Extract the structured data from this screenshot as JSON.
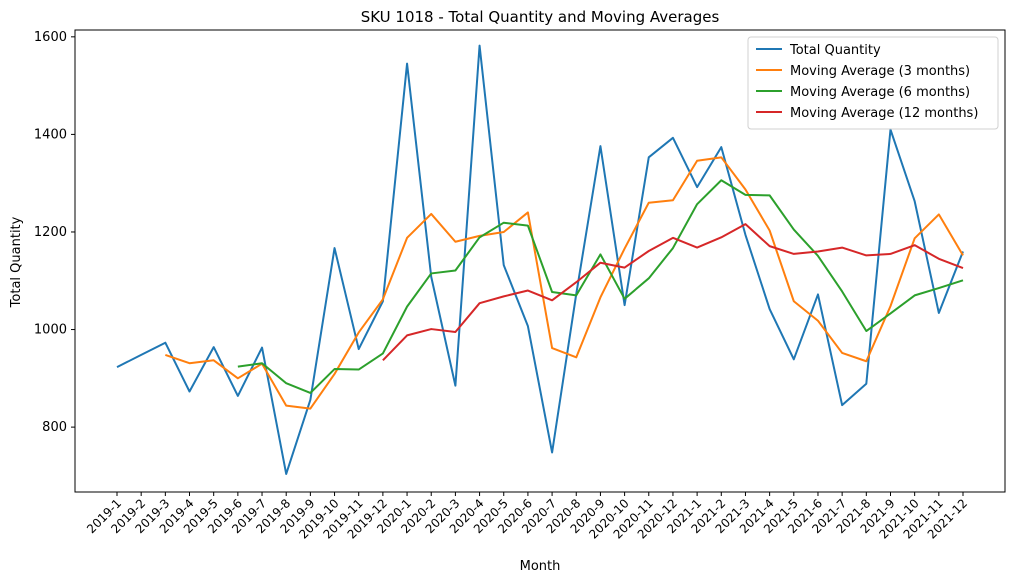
{
  "chart_data": {
    "type": "line",
    "title": "SKU 1018 - Total Quantity and Moving Averages",
    "xlabel": "Month",
    "ylabel": "Total Quantity",
    "ylim": [
      667,
      1614
    ],
    "yticks": [
      800,
      1000,
      1200,
      1400,
      1600
    ],
    "grid": false,
    "legend_position": "top-right",
    "categories": [
      "2019-1",
      "2019-2",
      "2019-3",
      "2019-4",
      "2019-5",
      "2019-6",
      "2019-7",
      "2019-8",
      "2019-9",
      "2019-10",
      "2019-11",
      "2019-12",
      "2020-1",
      "2020-2",
      "2020-3",
      "2020-4",
      "2020-5",
      "2020-6",
      "2020-7",
      "2020-8",
      "2020-9",
      "2020-10",
      "2020-11",
      "2020-12",
      "2021-1",
      "2021-2",
      "2021-3",
      "2021-4",
      "2021-5",
      "2021-6",
      "2021-7",
      "2021-8",
      "2021-9",
      "2021-10",
      "2021-11",
      "2021-12"
    ],
    "series": [
      {
        "name": "Total Quantity",
        "color": "#1f77b4",
        "values": [
          923,
          948,
          973,
          873,
          964,
          864,
          963,
          704,
          856,
          1167,
          960,
          1058,
          1545,
          1108,
          885,
          1582,
          1132,
          1007,
          748,
          1073,
          1376,
          1050,
          1353,
          1393,
          1292,
          1374,
          1194,
          1042,
          939,
          1072,
          845,
          889,
          1410,
          1263,
          1034,
          1160
        ]
      },
      {
        "name": "Moving Average (3 months)",
        "color": "#ff7f0e",
        "values": [
          null,
          null,
          948,
          931,
          937,
          900,
          930,
          844,
          838,
          909,
          994,
          1062,
          1188,
          1237,
          1180,
          1192,
          1200,
          1240,
          962,
          943,
          1066,
          1166,
          1260,
          1265,
          1346,
          1353,
          1287,
          1203,
          1058,
          1018,
          952,
          935,
          1048,
          1187,
          1236,
          1152
        ]
      },
      {
        "name": "Moving Average (6 months)",
        "color": "#2ca02c",
        "values": [
          null,
          null,
          null,
          null,
          null,
          924,
          931,
          890,
          870,
          919,
          918,
          951,
          1047,
          1115,
          1121,
          1189,
          1219,
          1213,
          1077,
          1070,
          1154,
          1063,
          1105,
          1167,
          1257,
          1306,
          1276,
          1275,
          1205,
          1151,
          1078,
          997,
          1033,
          1070,
          1085,
          1101
        ]
      },
      {
        "name": "Moving Average (12 months)",
        "color": "#d62728",
        "values": [
          null,
          null,
          null,
          null,
          null,
          null,
          null,
          null,
          null,
          null,
          null,
          937,
          988,
          1001,
          995,
          1054,
          1068,
          1080,
          1060,
          1097,
          1137,
          1127,
          1161,
          1188,
          1168,
          1189,
          1216,
          1171,
          1155,
          1160,
          1168,
          1152,
          1155,
          1173,
          1145,
          1126
        ]
      }
    ]
  }
}
